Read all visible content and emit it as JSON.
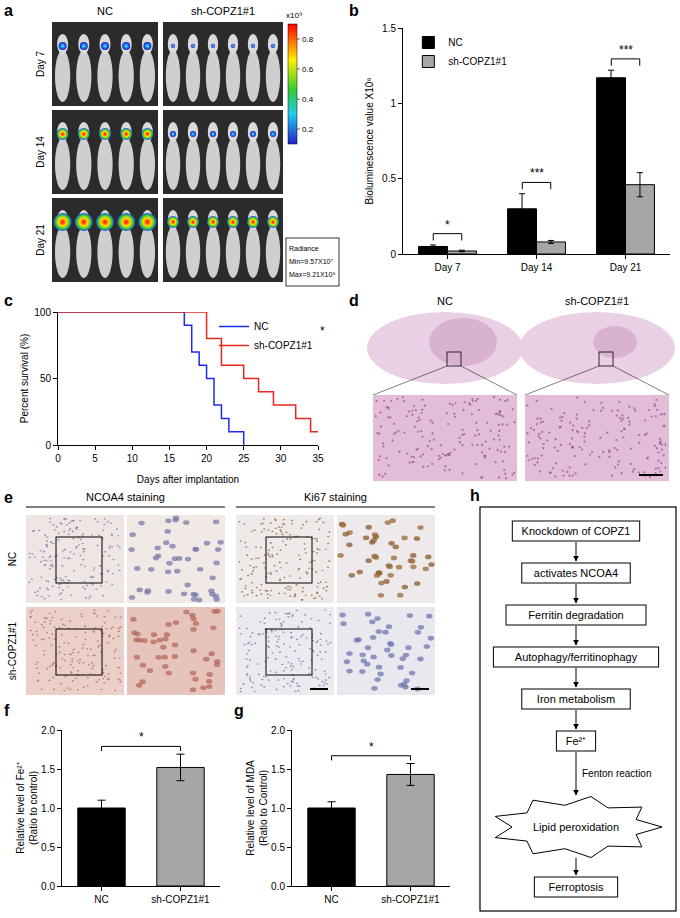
{
  "panel_a": {
    "letter": "a",
    "groups": [
      "NC",
      "sh-COPZ1#1"
    ],
    "rows": [
      "Day 7",
      "Day 14",
      "Day 21"
    ],
    "colorbar": {
      "label": "x10⁹",
      "ticks": [
        0.2,
        0.4,
        0.6,
        0.8
      ]
    },
    "radiance": [
      "Radiance",
      "Min=9.57X10⁷",
      "Max=9.21X10⁸"
    ]
  },
  "chart_data": [
    {
      "panel": "b",
      "type": "bar",
      "categories": [
        "Day 7",
        "Day 14",
        "Day 21"
      ],
      "series": [
        {
          "name": "NC",
          "color": "#000000",
          "values": [
            0.05,
            0.3,
            1.17
          ],
          "errors": [
            0.01,
            0.1,
            0.05
          ]
        },
        {
          "name": "sh-COPZ1#1",
          "color": "#a6a6a6",
          "values": [
            0.02,
            0.08,
            0.46
          ],
          "errors": [
            0.005,
            0.01,
            0.08
          ]
        }
      ],
      "y_label": "Bioluminescence value X10⁹",
      "ylim": [
        0,
        1.5
      ],
      "yticks": [
        0,
        0.5,
        1,
        1.5
      ],
      "legend": "top left",
      "significance": [
        {
          "category": "Day 7",
          "label": "*"
        },
        {
          "category": "Day 14",
          "label": "***"
        },
        {
          "category": "Day 21",
          "label": "***"
        }
      ]
    },
    {
      "panel": "c",
      "type": "line",
      "line_style": "step",
      "x_label": "Days after implantation",
      "y_label": "Percent survival (%)",
      "series": [
        {
          "name": "NC",
          "color": "#1a2cf0",
          "x": [
            0,
            17,
            18,
            19,
            20,
            21,
            22,
            23,
            25
          ],
          "values": [
            100,
            90,
            70,
            60,
            50,
            30,
            20,
            10,
            0
          ]
        },
        {
          "name": "sh-COPZ1#1",
          "color": "#e8281e",
          "x": [
            0,
            20,
            22,
            25,
            27,
            29,
            32,
            34,
            35
          ],
          "values": [
            100,
            80,
            60,
            50,
            40,
            30,
            20,
            10,
            10
          ]
        }
      ],
      "xlim": [
        0,
        35
      ],
      "xticks": [
        0,
        5,
        10,
        15,
        20,
        25,
        30,
        35
      ],
      "ylim": [
        0,
        100
      ],
      "yticks": [
        0,
        50,
        100
      ],
      "legend": "top right",
      "significance": [
        {
          "label": "*"
        }
      ]
    },
    {
      "panel": "f",
      "type": "bar",
      "categories": [
        "NC",
        "sh-COPZ1#1"
      ],
      "values": [
        1.0,
        1.52
      ],
      "errors": [
        0.1,
        0.17
      ],
      "colors": [
        "#000000",
        "#a6a6a6"
      ],
      "y_label": [
        "Relative level of Fe²⁺",
        "(Ratio to control)"
      ],
      "ylim": [
        0,
        2
      ],
      "yticks": [
        {
          "value": 0,
          "label": "0.0"
        },
        {
          "value": 0.5,
          "label": "0.5"
        },
        {
          "value": 1,
          "label": "1.0"
        },
        {
          "value": 1.5,
          "label": "1.5"
        },
        {
          "value": 2,
          "label": "2.0"
        }
      ],
      "significance": [
        {
          "between": [
            "NC",
            "sh-COPZ1#1"
          ],
          "label": "*"
        }
      ]
    },
    {
      "panel": "g",
      "type": "bar",
      "categories": [
        "NC",
        "sh-COPZ1#1"
      ],
      "values": [
        1.0,
        1.43
      ],
      "errors": [
        0.08,
        0.14
      ],
      "colors": [
        "#000000",
        "#a6a6a6"
      ],
      "y_label": [
        "Relative level of MDA",
        "(Ratio to Control)"
      ],
      "ylim": [
        0,
        2
      ],
      "yticks": [
        {
          "value": 0,
          "label": "0.0"
        },
        {
          "value": 0.5,
          "label": "0.5"
        },
        {
          "value": 1,
          "label": "1.0"
        },
        {
          "value": 1.5,
          "label": "1.5"
        },
        {
          "value": 2,
          "label": "2.0"
        }
      ],
      "significance": [
        {
          "between": [
            "NC",
            "sh-COPZ1#1"
          ],
          "label": "*"
        }
      ]
    }
  ],
  "panel_d": {
    "letter": "d",
    "groups": [
      "NC",
      "sh-COPZ1#1"
    ]
  },
  "panel_e": {
    "letter": "e",
    "columns": [
      "NCOA4 staining",
      "Ki67 staining"
    ],
    "rows": [
      "NC",
      "sh-COPZ1#1"
    ]
  },
  "panel_h": {
    "letter": "h",
    "steps": [
      "Knockdown of COPZ1",
      "activates NCOA4",
      "Ferritin degradation",
      "Autophagy/ferritinophagy",
      "Iron metabolism",
      "Fe²⁺",
      "Lipid peroxidation",
      "Ferroptosis"
    ],
    "arrow_label": "Fenton reaction"
  }
}
